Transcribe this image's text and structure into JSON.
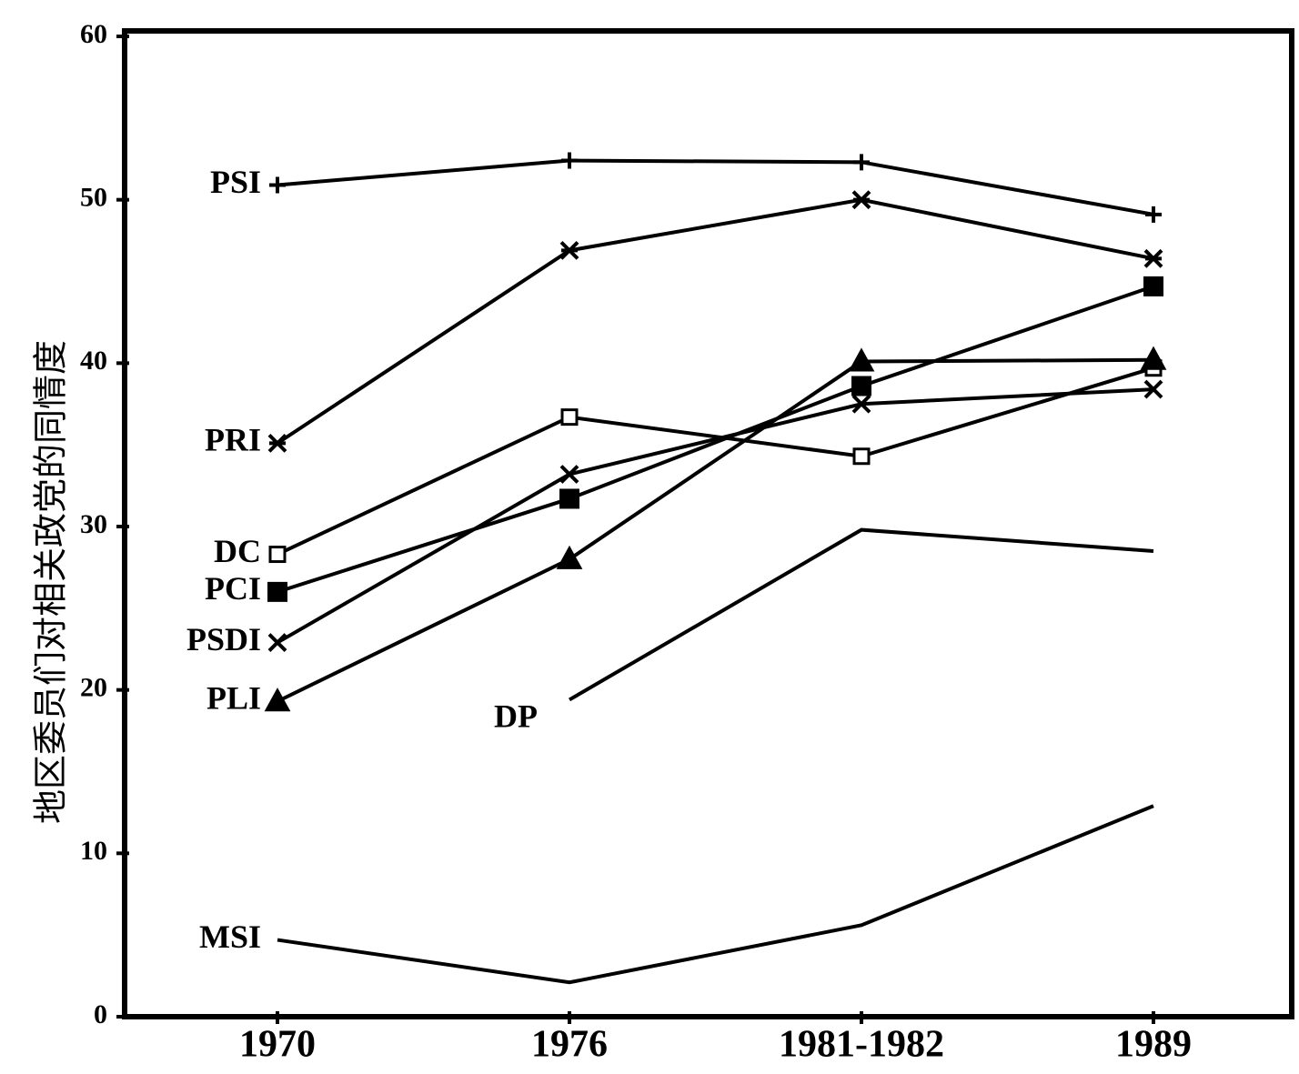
{
  "chart_data": {
    "type": "line",
    "y_axis_label": "地区委员们对相关政党的同情度",
    "categories": [
      "1970",
      "1976",
      "1981-1982",
      "1989"
    ],
    "ylim": [
      0,
      60
    ],
    "yticks": [
      0,
      10,
      20,
      30,
      40,
      50,
      60
    ],
    "color": "#000000",
    "series": [
      {
        "name": "PSI",
        "marker": "plus",
        "values": [
          50.9,
          52.4,
          52.3,
          49.1
        ]
      },
      {
        "name": "PRI",
        "marker": "asterisk",
        "values": [
          35.1,
          46.9,
          50.0,
          46.4
        ]
      },
      {
        "name": "DC",
        "marker": "open-square",
        "values": [
          28.3,
          36.7,
          34.3,
          39.7
        ]
      },
      {
        "name": "PCI",
        "marker": "filled-square",
        "values": [
          26.0,
          31.7,
          38.6,
          44.7
        ]
      },
      {
        "name": "PSDI",
        "marker": "x",
        "values": [
          22.9,
          33.2,
          37.5,
          38.4
        ]
      },
      {
        "name": "PLI",
        "marker": "triangle",
        "values": [
          19.3,
          28.0,
          40.1,
          40.2
        ]
      },
      {
        "name": "DP",
        "marker": "none",
        "values": [
          null,
          19.4,
          29.8,
          28.5
        ]
      },
      {
        "name": "MSI",
        "marker": "none",
        "values": [
          4.7,
          2.1,
          5.6,
          12.9
        ]
      }
    ]
  }
}
